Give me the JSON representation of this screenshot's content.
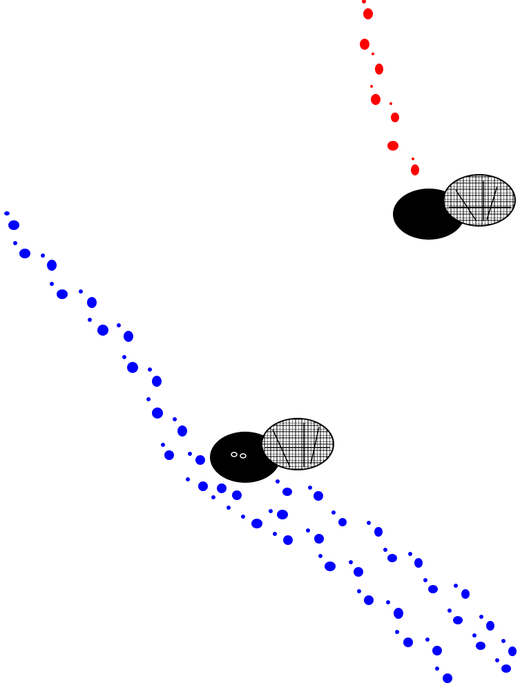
{
  "scene": {
    "background": "#ffffff",
    "trail_colors": {
      "opponent": "#ff0000",
      "player": "#0000ff"
    },
    "character_body_color": "#000000",
    "shell_color": "#ffffff",
    "shell_pattern_color": "#000000",
    "icons": {
      "opponent": "snail-character-icon",
      "player": "snail-character-icon"
    }
  }
}
